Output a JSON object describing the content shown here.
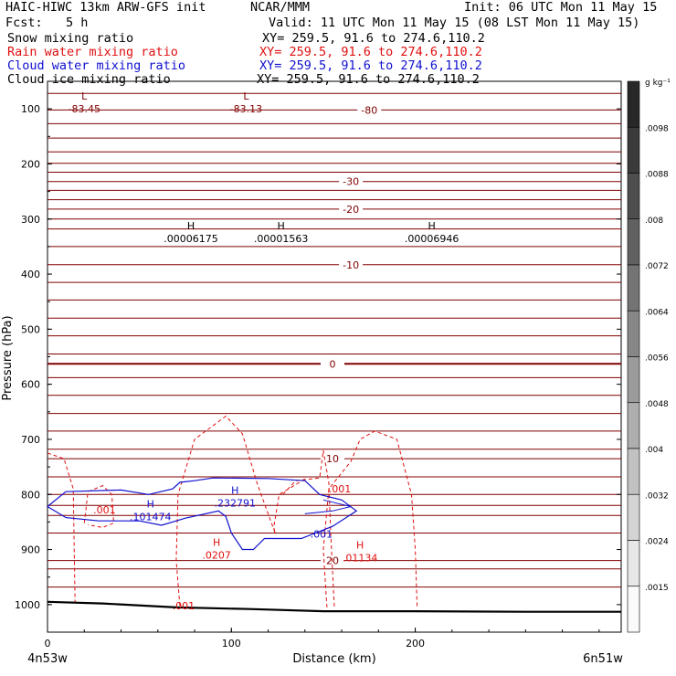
{
  "header": {
    "model": "HAIC-HIWC 13km ARW-GFS init",
    "org": "NCAR/MMM",
    "init": "Init: 06 UTC Mon 11 May 15",
    "fcst_label": "Fcst:",
    "fcst_value": "5 h",
    "valid": "Valid: 11 UTC Mon 11 May 15 (08 LST Mon 11 May 15)"
  },
  "fields": [
    {
      "label": "Snow mixing ratio",
      "xy": "XY= 259.5, 91.6 to 274.6,110.2",
      "color": "#000000"
    },
    {
      "label": "Rain water mixing ratio",
      "xy": "XY= 259.5, 91.6 to 274.6,110.2",
      "color": "#e01010"
    },
    {
      "label": "Cloud water mixing ratio",
      "xy": "XY= 259.5, 91.6 to 274.6,110.2",
      "color": "#1010d0"
    },
    {
      "label": "Cloud ice mixing ratio",
      "xy": "XY= 259.5, 91.6 to 274.6,110.2",
      "color": "#000000"
    }
  ],
  "chart_data": {
    "type": "contour",
    "xlabel": "Distance (km)",
    "ylabel": "Pressure (hPa)",
    "xlim": [
      0,
      312
    ],
    "ylim": [
      1050,
      50
    ],
    "x_ticks": [
      0,
      100,
      200
    ],
    "y_ticks": [
      100,
      200,
      300,
      400,
      500,
      600,
      700,
      800,
      900,
      1000
    ],
    "endpoint_left": "4n53w",
    "endpoint_right": "6n51w",
    "temperature_contours_c": [
      -80,
      -30,
      -20,
      -10,
      0,
      10,
      20
    ],
    "extrema": [
      {
        "type": "L",
        "value": "-83.45",
        "x": 20,
        "p": 95,
        "color": "#800000"
      },
      {
        "type": "L",
        "value": "-83.13",
        "x": 108,
        "p": 95,
        "color": "#800000"
      },
      {
        "type": "H",
        "value": ".00006175",
        "x": 78,
        "p": 330,
        "color": "#000000"
      },
      {
        "type": "H",
        "value": ".00001563",
        "x": 127,
        "p": 330,
        "color": "#000000"
      },
      {
        "type": "H",
        "value": ".00006946",
        "x": 209,
        "p": 330,
        "color": "#000000"
      },
      {
        "type": "H",
        "value": ".101474",
        "x": 56,
        "p": 835,
        "color": "#1010d0"
      },
      {
        "type": "H",
        "value": ".232791",
        "x": 102,
        "p": 810,
        "color": "#1010d0"
      },
      {
        "type": "H",
        "value": ".0207",
        "x": 92,
        "p": 905,
        "color": "#e01010"
      },
      {
        "type": "H",
        "value": ".01134",
        "x": 170,
        "p": 910,
        "color": "#e01010"
      }
    ],
    "contour_labels": [
      {
        "text": ".001",
        "x": 31,
        "p": 828,
        "color": "#e01010"
      },
      {
        "text": ".001",
        "x": 159,
        "p": 790,
        "color": "#e01010"
      },
      {
        "text": ".001",
        "x": 74,
        "p": 1002,
        "color": "#e01010"
      },
      {
        "text": ".001",
        "x": 149,
        "p": 872,
        "color": "#1010d0"
      }
    ],
    "colorbar": {
      "unit": "g kg⁻¹",
      "labels": [
        ".0098",
        ".0088",
        ".008",
        ".0072",
        ".0064",
        ".0056",
        ".0048",
        ".004",
        ".0032",
        ".0024",
        ".0015"
      ]
    }
  }
}
